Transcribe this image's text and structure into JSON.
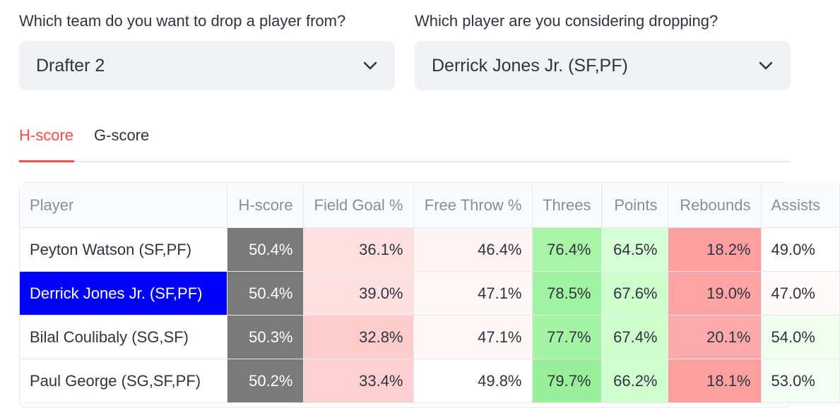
{
  "team_select": {
    "label": "Which team do you want to drop a player from?",
    "value": "Drafter 2",
    "icon": "chevron-down-icon"
  },
  "player_select": {
    "label": "Which player are you considering dropping?",
    "value": "Derrick Jones Jr. (SF,PF)",
    "icon": "chevron-down-icon"
  },
  "tabs": [
    {
      "label": "H-score",
      "active": true
    },
    {
      "label": "G-score",
      "active": false
    }
  ],
  "colors": {
    "accent": "#ff4b4b",
    "hscore_cell": "#7a7a7a",
    "selected_row": "#0000ff"
  },
  "table": {
    "headers": [
      "Player",
      "H-score",
      "Field Goal %",
      "Free Throw %",
      "Threes",
      "Points",
      "Rebounds",
      "Assists"
    ],
    "rows": [
      {
        "player": "Peyton Watson (SF,PF)",
        "selected": false,
        "cells": [
          "50.4%",
          "36.1%",
          "46.4%",
          "76.4%",
          "64.5%",
          "18.2%",
          "49.0%"
        ],
        "colors": [
          "#7a7a7a",
          "#ffe0e0",
          "#fff4f4",
          "#a8f5a8",
          "#d6ffd6",
          "#ffa0a0",
          "#ffffff"
        ]
      },
      {
        "player": "Derrick Jones Jr. (SF,PF)",
        "selected": true,
        "cells": [
          "50.4%",
          "39.0%",
          "47.1%",
          "78.5%",
          "67.6%",
          "19.0%",
          "47.0%"
        ],
        "colors": [
          "#7a7a7a",
          "#ffe0e0",
          "#fff6f6",
          "#a0f3a0",
          "#ccffcc",
          "#ffa4a4",
          "#fffafa"
        ]
      },
      {
        "player": "Bilal Coulibaly (SG,SF)",
        "selected": false,
        "cells": [
          "50.3%",
          "32.8%",
          "47.1%",
          "77.7%",
          "67.4%",
          "20.1%",
          "54.0%"
        ],
        "colors": [
          "#7a7a7a",
          "#ffcccc",
          "#fff6f6",
          "#a4f4a4",
          "#ccffcc",
          "#ffaaaa",
          "#f0fff0"
        ]
      },
      {
        "player": "Paul George (SG,SF,PF)",
        "selected": false,
        "cells": [
          "50.2%",
          "33.4%",
          "49.8%",
          "79.7%",
          "66.2%",
          "18.1%",
          "53.0%"
        ],
        "colors": [
          "#7a7a7a",
          "#ffd0d0",
          "#ffffff",
          "#98f098",
          "#d0ffd0",
          "#ffa0a0",
          "#f4fff4"
        ]
      }
    ]
  }
}
